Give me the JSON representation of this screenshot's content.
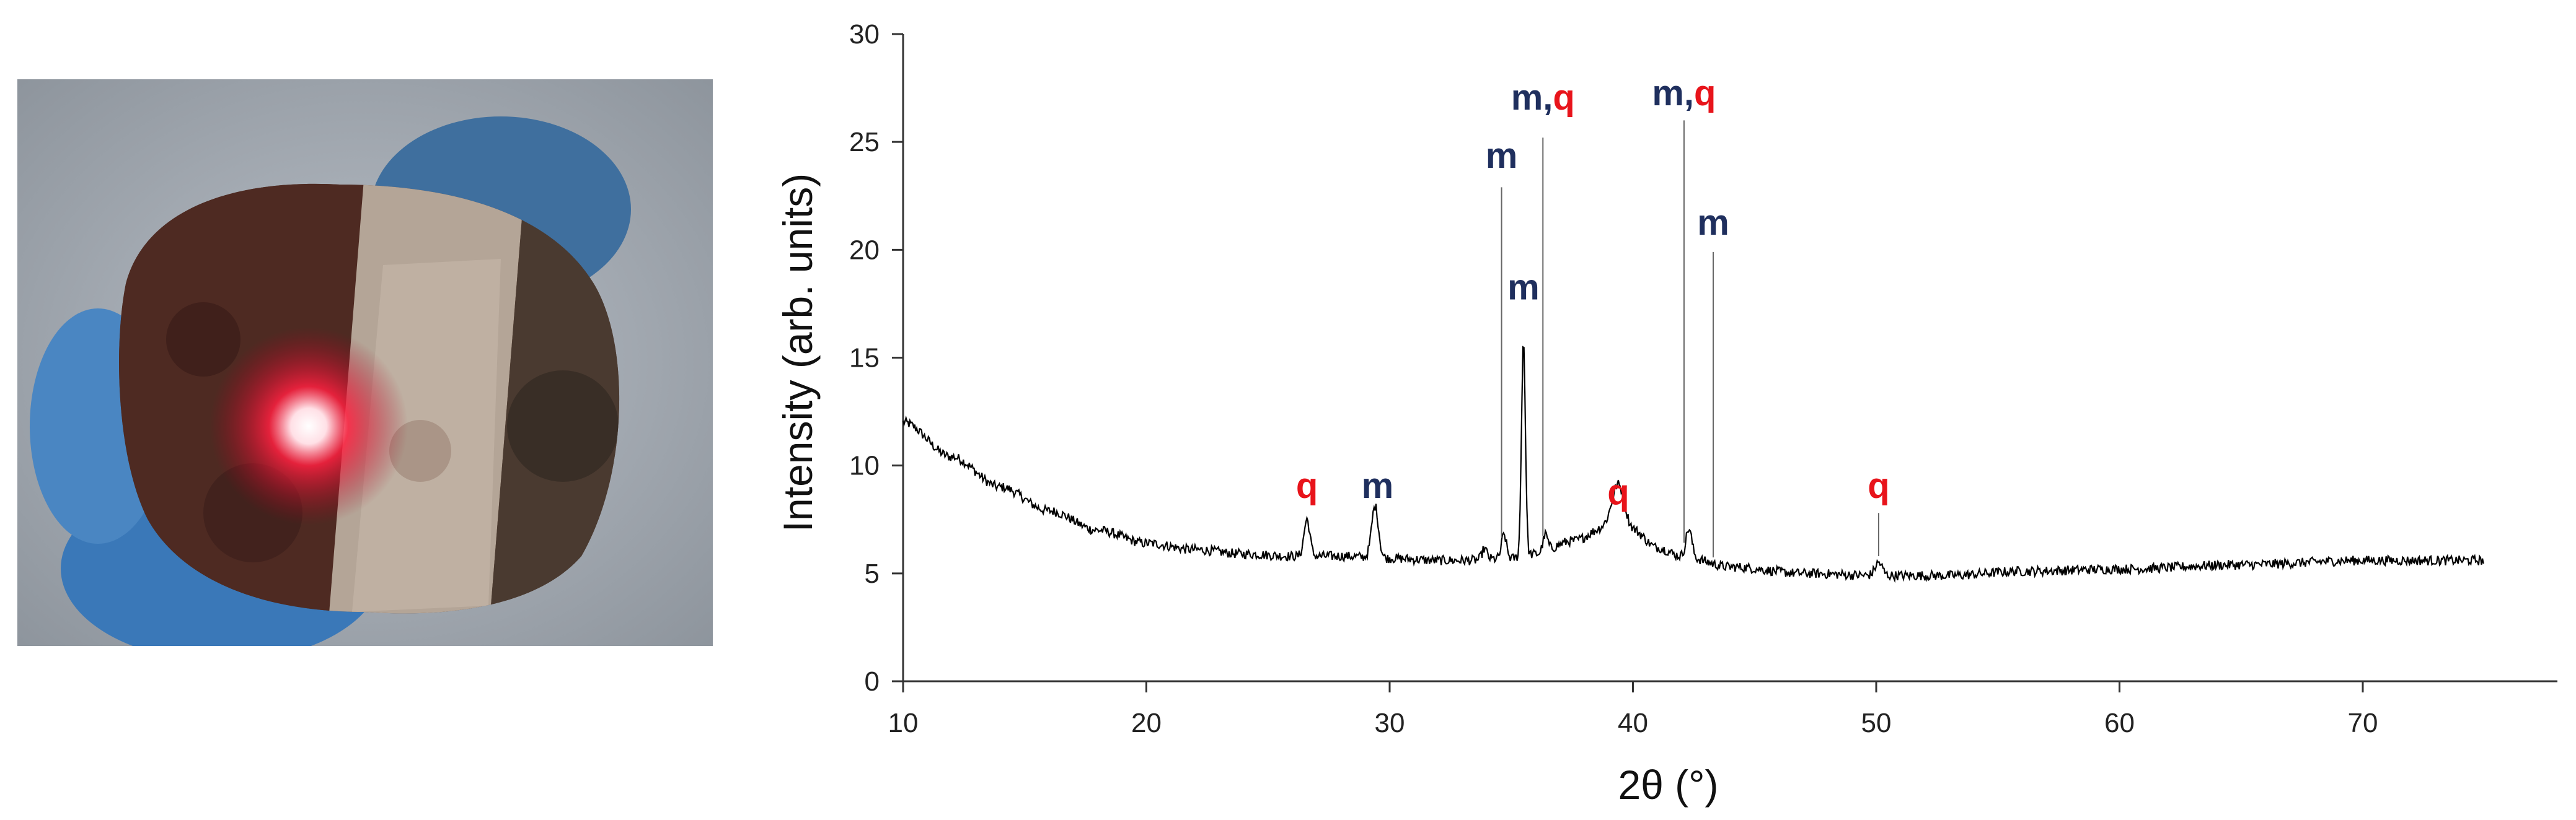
{
  "photo": {
    "icon": "sample-photo-laser-spot"
  },
  "chart_data": {
    "type": "line",
    "title": "",
    "xlabel": "2θ (°)",
    "ylabel": "Intensity (arb. units)",
    "xlim": [
      10,
      78
    ],
    "ylim": [
      0,
      30
    ],
    "xticks": [
      10,
      20,
      30,
      40,
      50,
      60,
      70
    ],
    "yticks": [
      0,
      5,
      10,
      15,
      20,
      25,
      30
    ],
    "grid": false,
    "line_color": "#000000",
    "colors": {
      "m": "#1f2f5e",
      "q": "#e8141b"
    },
    "baseline": [
      [
        10,
        12.0
      ],
      [
        12,
        10.4
      ],
      [
        14,
        9.0
      ],
      [
        16,
        7.9
      ],
      [
        18,
        7.0
      ],
      [
        20,
        6.4
      ],
      [
        22,
        6.1
      ],
      [
        24,
        5.9
      ],
      [
        26,
        5.8
      ],
      [
        28,
        5.8
      ],
      [
        30,
        5.7
      ],
      [
        32,
        5.6
      ],
      [
        33,
        5.6
      ],
      [
        35,
        5.7
      ],
      [
        36,
        5.9
      ],
      [
        37.5,
        6.5
      ],
      [
        39,
        7.2
      ],
      [
        40,
        7.0
      ],
      [
        41,
        6.2
      ],
      [
        42,
        5.8
      ],
      [
        44,
        5.3
      ],
      [
        47,
        5.0
      ],
      [
        50,
        4.9
      ],
      [
        53,
        4.9
      ],
      [
        56,
        5.1
      ],
      [
        60,
        5.2
      ],
      [
        65,
        5.4
      ],
      [
        70,
        5.6
      ],
      [
        75,
        5.6
      ]
    ],
    "peaks": [
      {
        "x": 26.6,
        "h": 1.7,
        "w": 0.12
      },
      {
        "x": 29.4,
        "h": 2.4,
        "w": 0.14
      },
      {
        "x": 33.9,
        "h": 0.5,
        "w": 0.1
      },
      {
        "x": 34.7,
        "h": 1.1,
        "w": 0.1
      },
      {
        "x": 35.5,
        "h": 10.0,
        "w": 0.08
      },
      {
        "x": 36.4,
        "h": 0.8,
        "w": 0.1
      },
      {
        "x": 39.4,
        "h": 2.0,
        "w": 0.25
      },
      {
        "x": 42.3,
        "h": 1.3,
        "w": 0.12
      },
      {
        "x": 50.1,
        "h": 0.6,
        "w": 0.15
      }
    ],
    "annotations": [
      {
        "x": 26.6,
        "label": [
          {
            "t": "q",
            "c": "q"
          }
        ],
        "line_top": 0,
        "label_y": 8.5
      },
      {
        "x": 29.5,
        "label": [
          {
            "t": "m",
            "c": "m"
          }
        ],
        "line_top": 0,
        "label_y": 8.5
      },
      {
        "x": 34.6,
        "label": [
          {
            "t": "m",
            "c": "m"
          }
        ],
        "line_top": 22.9,
        "label_y": 23.8
      },
      {
        "x": 35.5,
        "label": [
          {
            "t": "m",
            "c": "m"
          }
        ],
        "line_top": 0,
        "label_y": 17.7
      },
      {
        "x": 36.3,
        "label": [
          {
            "t": "m",
            "c": "m"
          },
          {
            "t": ",",
            "c": "m"
          },
          {
            "t": "q",
            "c": "q"
          }
        ],
        "line_top": 25.2,
        "label_y": 26.5
      },
      {
        "x": 39.4,
        "label": [
          {
            "t": "q",
            "c": "q"
          }
        ],
        "line_top": 0,
        "label_y": 8.2
      },
      {
        "x": 42.1,
        "label": [
          {
            "t": "m",
            "c": "m"
          },
          {
            "t": ",",
            "c": "m"
          },
          {
            "t": "q",
            "c": "q"
          }
        ],
        "line_top": 26.0,
        "label_y": 26.7
      },
      {
        "x": 43.3,
        "label": [
          {
            "t": "m",
            "c": "m"
          }
        ],
        "line_top": 19.9,
        "label_y": 20.7
      },
      {
        "x": 50.1,
        "label": [
          {
            "t": "q",
            "c": "q"
          }
        ],
        "line_top": 7.8,
        "label_y": 8.5
      }
    ]
  }
}
